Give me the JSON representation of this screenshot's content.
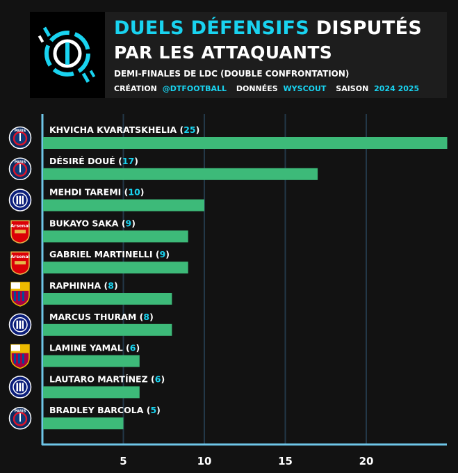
{
  "header": {
    "title_accent": "DUELS DÉFENSIFS",
    "title_rest": "DISPUTÉS",
    "title_line2": "PAR LES ATTAQUANTS",
    "subtitle": "DEMI-FINALES DE LDC (DOUBLE CONFRONTATION)",
    "credit_label": "CRÉATION",
    "credit_value": "@DTFOOTBALL",
    "data_label": "DONNÉES",
    "data_value": "WYSCOUT",
    "season_label": "SAISON",
    "season_value": "2024 2025"
  },
  "colors": {
    "accent": "#19d3f0",
    "bar": "#3dba79",
    "background": "#121212"
  },
  "badges": {
    "psg": "PARIS",
    "arsenal": "Arsenal"
  },
  "chart_data": {
    "type": "bar",
    "orientation": "horizontal",
    "categories": [
      "KHVICHA KVARATSKHELIA",
      "DÉSIRÉ DOUÉ",
      "MEHDI TAREMI",
      "BUKAYO SAKA",
      "GABRIEL MARTINELLI",
      "RAPHINHA",
      "MARCUS THURAM",
      "LAMINE YAMAL",
      "LAUTARO MARTÍNEZ",
      "BRADLEY BARCOLA"
    ],
    "values": [
      25,
      17,
      10,
      9,
      9,
      8,
      8,
      6,
      6,
      5
    ],
    "clubs": [
      "psg",
      "psg",
      "inter",
      "arsenal",
      "arsenal",
      "barca",
      "inter",
      "barca",
      "inter",
      "psg"
    ],
    "xticks": [
      5,
      10,
      15,
      20
    ],
    "xlim": [
      0,
      25
    ],
    "grid": true
  }
}
